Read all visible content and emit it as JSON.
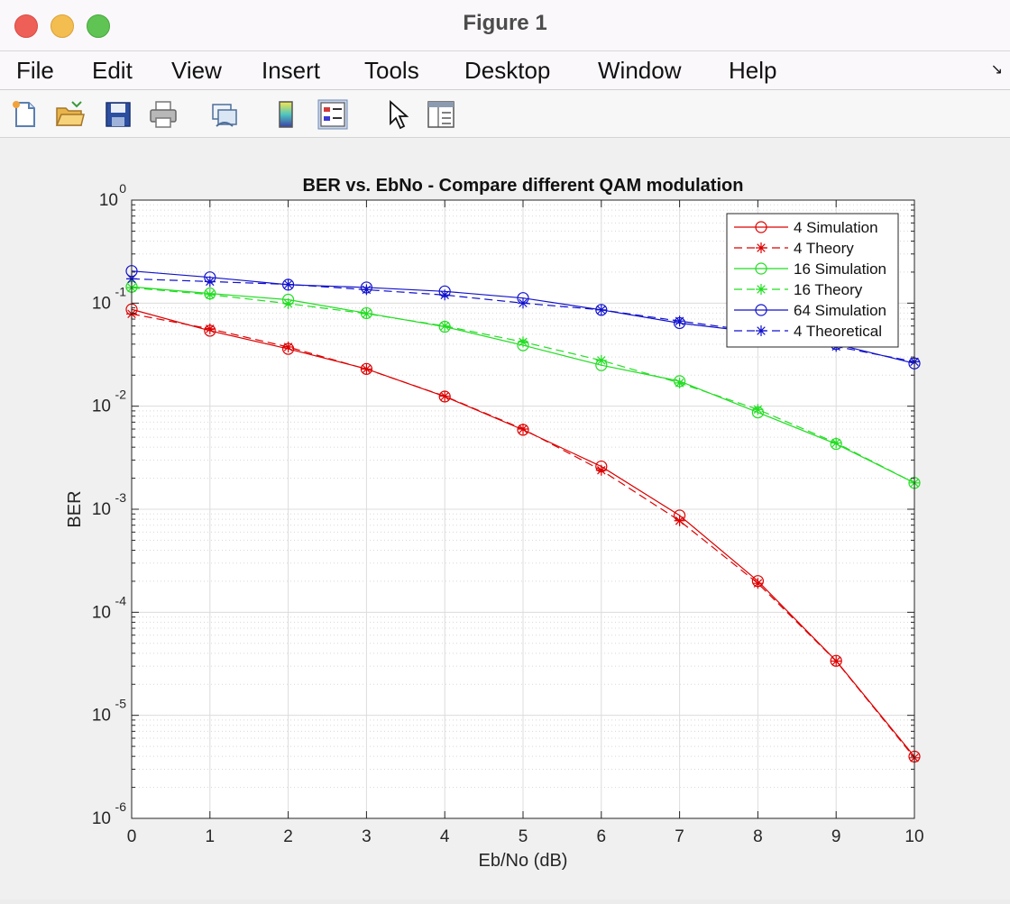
{
  "window": {
    "title": "Figure 1",
    "controls": [
      "close",
      "minimize",
      "maximize"
    ]
  },
  "menubar": {
    "items": [
      "File",
      "Edit",
      "View",
      "Insert",
      "Tools",
      "Desktop",
      "Window",
      "Help"
    ]
  },
  "toolbar": {
    "buttons": [
      {
        "name": "new-figure-icon"
      },
      {
        "name": "open-file-icon"
      },
      {
        "name": "save-icon"
      },
      {
        "name": "print-icon"
      },
      {
        "name": "link-plot-icon"
      },
      {
        "name": "insert-colorbar-icon"
      },
      {
        "name": "insert-legend-icon"
      },
      {
        "name": "edit-plot-pointer-icon"
      },
      {
        "name": "property-inspector-icon"
      }
    ]
  },
  "chart_data": {
    "type": "line",
    "title": "BER vs. EbNo - Compare different QAM modulation",
    "xlabel": "Eb/No (dB)",
    "ylabel": "BER",
    "yscale": "log",
    "xlim": [
      0,
      10
    ],
    "ylim": [
      1e-06,
      1
    ],
    "xticks": [
      "0",
      "1",
      "2",
      "3",
      "4",
      "5",
      "6",
      "7",
      "8",
      "9",
      "10"
    ],
    "yticks": [
      {
        "base": "10",
        "exp": "0"
      },
      {
        "base": "10",
        "exp": "-1"
      },
      {
        "base": "10",
        "exp": "-2"
      },
      {
        "base": "10",
        "exp": "-3"
      },
      {
        "base": "10",
        "exp": "-4"
      },
      {
        "base": "10",
        "exp": "-5"
      },
      {
        "base": "10",
        "exp": "-6"
      }
    ],
    "grid": "major+minor",
    "legend_position": "top-right",
    "x": [
      0,
      1,
      2,
      3,
      4,
      5,
      6,
      7,
      8,
      9,
      10
    ],
    "series": [
      {
        "name": "4 Simulation",
        "color": "#dd0000",
        "marker": "circle",
        "dashed": false,
        "values": [
          0.087,
          0.054,
          0.036,
          0.023,
          0.0124,
          0.0059,
          0.0026,
          0.00087,
          0.000201,
          3.38e-05,
          3.98e-06
        ]
      },
      {
        "name": "4 Theory",
        "color": "#dd0000",
        "marker": "star",
        "dashed": true,
        "values": [
          0.0786,
          0.0563,
          0.0375,
          0.0229,
          0.0125,
          0.006,
          0.00239,
          0.000773,
          0.000191,
          3.36e-05,
          3.87e-06
        ]
      },
      {
        "name": "16 Simulation",
        "color": "#22dd22",
        "marker": "circle",
        "dashed": false,
        "values": [
          0.144,
          0.124,
          0.108,
          0.08,
          0.059,
          0.039,
          0.025,
          0.0175,
          0.0087,
          0.0043,
          0.0018
        ]
      },
      {
        "name": "16 Theory",
        "color": "#22dd22",
        "marker": "star",
        "dashed": true,
        "values": [
          0.141,
          0.121,
          0.099,
          0.079,
          0.06,
          0.042,
          0.0278,
          0.0168,
          0.0093,
          0.0044,
          0.0018
        ]
      },
      {
        "name": "64 Simulation",
        "color": "#1111cc",
        "marker": "circle",
        "dashed": false,
        "values": [
          0.205,
          0.178,
          0.151,
          0.142,
          0.13,
          0.112,
          0.086,
          0.064,
          0.052,
          0.04,
          0.026
        ]
      },
      {
        "name": "4 Theoretical",
        "color": "#1111cc",
        "marker": "star",
        "dashed": true,
        "values": [
          0.172,
          0.162,
          0.152,
          0.135,
          0.12,
          0.1,
          0.086,
          0.067,
          0.053,
          0.038,
          0.027
        ]
      }
    ]
  }
}
